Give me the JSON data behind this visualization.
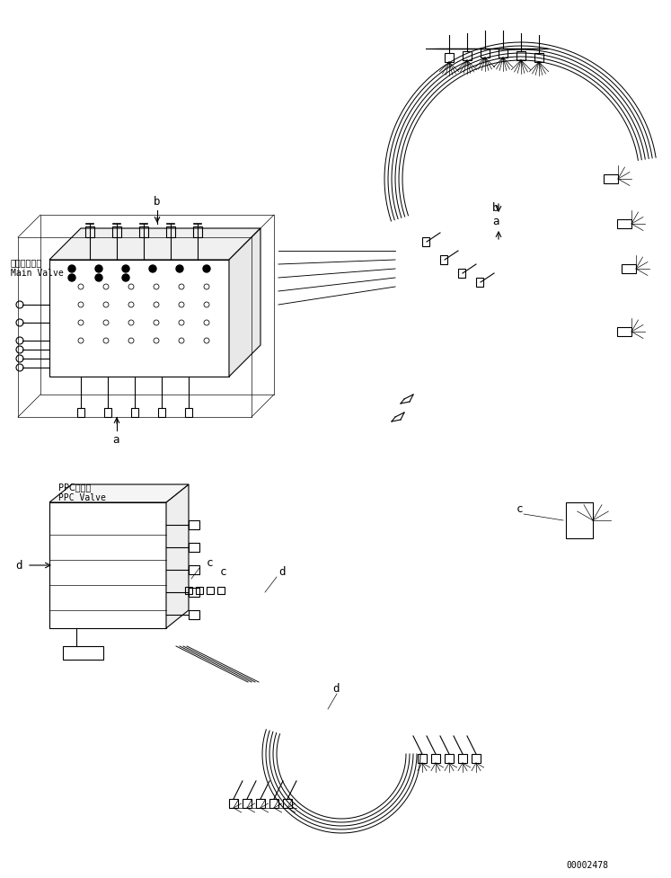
{
  "title": "",
  "background_color": "#ffffff",
  "part_number": "00002478",
  "labels": {
    "main_valve_ja": "メインバルブ",
    "main_valve_en": "Main Valve",
    "ppc_valve_ja": "PPCバルブ",
    "ppc_valve_en": "PPC Valve"
  },
  "letter_labels": [
    "a",
    "b",
    "c",
    "d"
  ],
  "line_color": "#000000",
  "line_width": 0.8,
  "component_color": "#000000",
  "fig_width": 7.47,
  "fig_height": 9.78,
  "dpi": 100
}
